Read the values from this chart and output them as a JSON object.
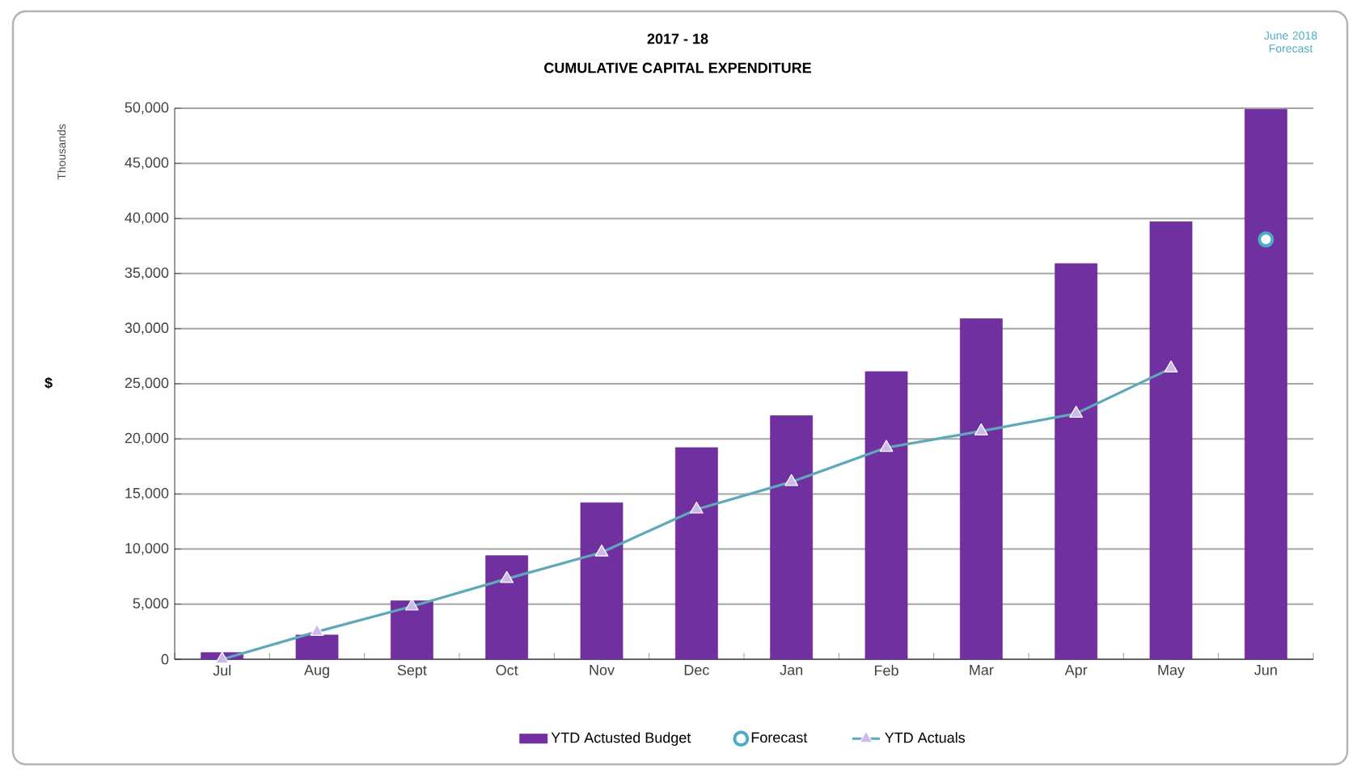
{
  "chart_data": {
    "type": "bar",
    "title": "2017 - 18",
    "subtitle": "CUMULATIVE CAPITAL EXPENDITURE",
    "ylabel": "$",
    "annotations": [
      "Thousands",
      "June 2018 Forecast"
    ],
    "categories": [
      "Jul",
      "Aug",
      "Sept",
      "Oct",
      "Nov",
      "Dec",
      "Jan",
      "Feb",
      "Mar",
      "Apr",
      "May",
      "Jun"
    ],
    "series": [
      {
        "name": "YTD Actusted Budget",
        "color": "#7030a0",
        "values": [
          600,
          2200,
          5300,
          9400,
          14200,
          19200,
          22100,
          26100,
          30900,
          35900,
          39700,
          49900
        ]
      },
      {
        "name": "Forecast",
        "type": "scatter",
        "marker": "circle",
        "color": "#4bacc6",
        "values": [
          null,
          null,
          null,
          null,
          null,
          null,
          null,
          null,
          null,
          null,
          null,
          38100
        ]
      },
      {
        "name": "YTD Actuals",
        "type": "line",
        "marker": "triangle",
        "color": "#5fa8b8",
        "values": [
          0,
          2500,
          4800,
          7300,
          9700,
          13600,
          16100,
          19200,
          20700,
          22300,
          26400,
          null
        ]
      }
    ],
    "ylim": [
      0,
      50000
    ],
    "yticks": [
      {
        "value": 0,
        "label": "0"
      },
      {
        "value": 5000,
        "label": "5,000"
      },
      {
        "value": 10000,
        "label": "10,000"
      },
      {
        "value": 15000,
        "label": "15,000"
      },
      {
        "value": 20000,
        "label": "20,000"
      },
      {
        "value": 25000,
        "label": "25,000"
      },
      {
        "value": 30000,
        "label": "30,000"
      },
      {
        "value": 35000,
        "label": "35,000"
      },
      {
        "value": 40000,
        "label": "40,000"
      },
      {
        "value": 45000,
        "label": "45,000"
      },
      {
        "value": 50000,
        "label": "50,000"
      }
    ],
    "grid": "y",
    "legend": "bottom"
  }
}
